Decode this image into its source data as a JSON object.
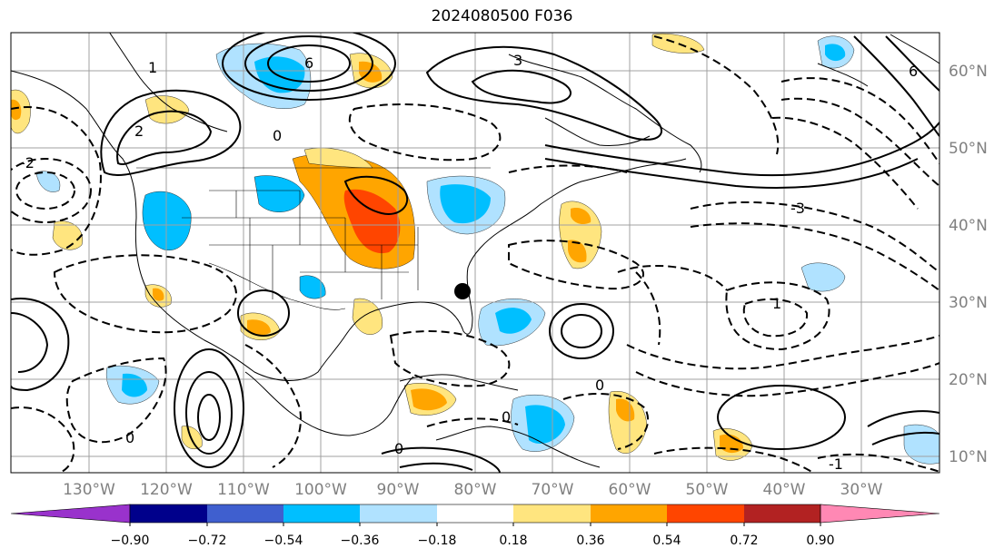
{
  "title": "2024080500 F036",
  "latitude_labels": [
    "60°N",
    "50°N",
    "40°N",
    "30°N",
    "20°N",
    "10°N"
  ],
  "longitude_labels": [
    "130°W",
    "120°W",
    "110°W",
    "100°W",
    "90°W",
    "80°W",
    "70°W",
    "60°W",
    "50°W",
    "40°W",
    "30°W"
  ],
  "colorbar": {
    "tick_labels": [
      "−0.90",
      "−0.72",
      "−0.54",
      "−0.36",
      "−0.18",
      "0.18",
      "0.36",
      "0.54",
      "0.72",
      "0.90"
    ],
    "colors": [
      "#9932CC",
      "#00008B",
      "#3F5FCF",
      "#00BFFF",
      "#B0E2FF",
      "#FFFFFF",
      "#FFE57F",
      "#FFA500",
      "#FF4500",
      "#B22222",
      "#FF88B4"
    ]
  },
  "contour_labels": [
    "0",
    "-1",
    "-2",
    "-3",
    "1",
    "2",
    "3",
    "6"
  ],
  "colors": {
    "contour": "#000000",
    "grid": "#a0a0a0",
    "marker": "#000000",
    "coast": "#000000"
  }
}
